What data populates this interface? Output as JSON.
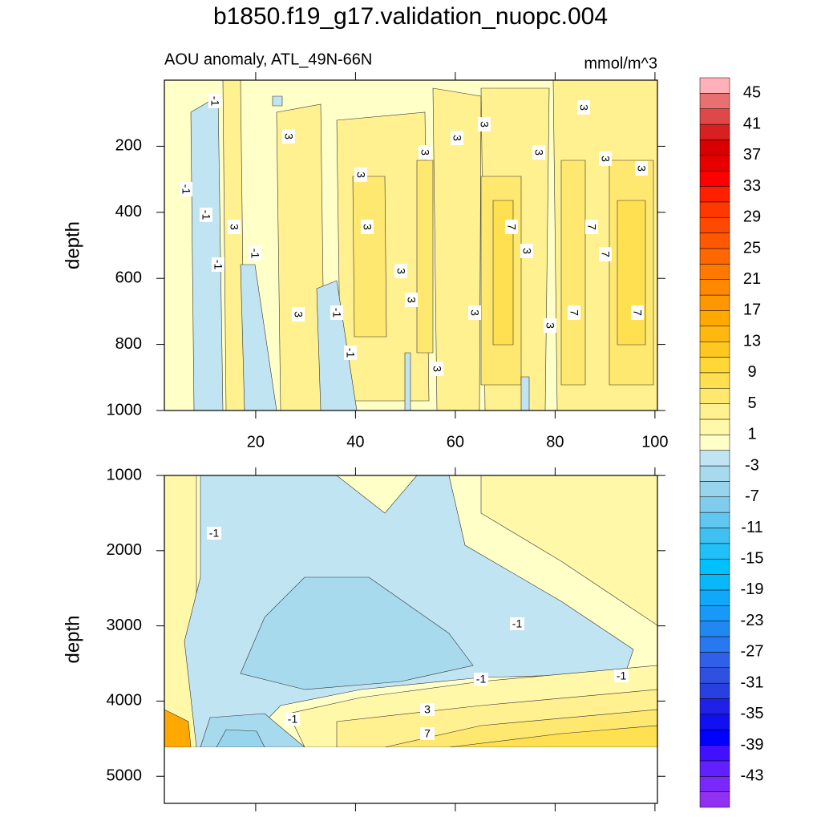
{
  "title": "b1850.f19_g17.validation_nuopc.004",
  "chart_data": [
    {
      "type": "contour",
      "subtitle": "AOU anomaly, ATL_49N-66N",
      "units": "mmol/m^3",
      "ylabel": "depth",
      "xlim": [
        1.7,
        100.5
      ],
      "xticks": [
        20,
        40,
        60,
        80,
        100
      ],
      "ylim": [
        0,
        1000
      ],
      "yticks": [
        200,
        400,
        600,
        800,
        1000
      ],
      "contour_labels": [
        -1,
        -1,
        -1,
        -1,
        -1,
        3,
        3,
        3,
        3,
        3,
        3,
        3,
        3,
        3,
        3,
        3,
        7,
        7,
        7,
        3,
        3,
        3,
        3,
        -1,
        -1,
        3,
        3,
        7,
        7,
        3
      ]
    },
    {
      "type": "contour",
      "ylabel": "depth",
      "xlim": [
        1.7,
        100.5
      ],
      "xticks": [
        20,
        40,
        60,
        80,
        100
      ],
      "ylim": [
        1000,
        5360
      ],
      "yticks": [
        1000,
        2000,
        3000,
        4000,
        5000
      ],
      "contour_labels": [
        -1,
        -1,
        -1,
        -1,
        -1,
        3,
        7
      ]
    }
  ],
  "colorbar": {
    "levels": [
      -45,
      -43,
      -41,
      -39,
      -37,
      -35,
      -33,
      -31,
      -29,
      -27,
      -25,
      -23,
      -21,
      -19,
      -17,
      -15,
      -13,
      -11,
      -9,
      -7,
      -5,
      -3,
      -1,
      1,
      3,
      5,
      7,
      9,
      11,
      13,
      15,
      17,
      19,
      21,
      23,
      25,
      27,
      29,
      31,
      33,
      35,
      37,
      39,
      41,
      43,
      45
    ],
    "colors": [
      "#9030f0",
      "#7828f8",
      "#6020ff",
      "#4010ff",
      "#0000ff",
      "#1010f0",
      "#2020e8",
      "#2840e0",
      "#3050e0",
      "#3060e8",
      "#2878f0",
      "#2088f0",
      "#1898f8",
      "#10a8f8",
      "#08b8f8",
      "#00c0ff",
      "#20c0f8",
      "#40c0f0",
      "#60c8f0",
      "#80ccec",
      "#98d4ec",
      "#a8daee",
      "#c0e4f2",
      "#ffffc8",
      "#fff8a8",
      "#fff090",
      "#ffe870",
      "#ffe050",
      "#ffd838",
      "#ffc820",
      "#ffb810",
      "#ffa800",
      "#ff9800",
      "#ff8800",
      "#ff7800",
      "#ff6800",
      "#ff5800",
      "#ff4800",
      "#ff3800",
      "#ff2000",
      "#ff0000",
      "#e80000",
      "#d80000",
      "#d82020",
      "#e04848",
      "#e87070",
      "#ffb0b8"
    ],
    "ticks": [
      45,
      41,
      37,
      33,
      29,
      25,
      21,
      17,
      13,
      9,
      5,
      1,
      -3,
      -7,
      -11,
      -15,
      -19,
      -23,
      -27,
      -31,
      -35,
      -39,
      -43
    ]
  }
}
